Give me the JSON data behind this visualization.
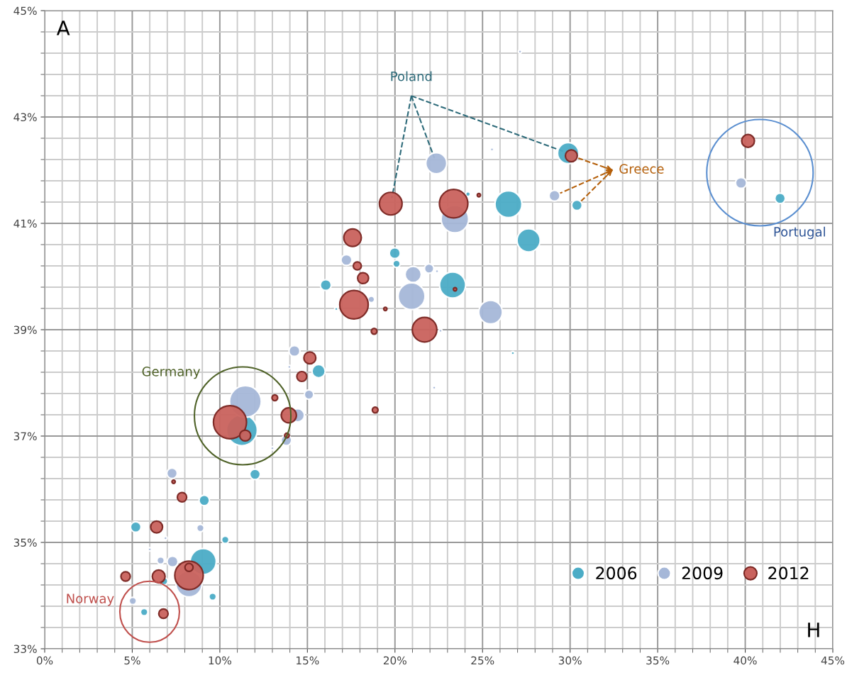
{
  "chart_data": {
    "type": "bubble",
    "legend": "bottom right",
    "grid": true,
    "xlim": [
      0,
      45
    ],
    "ylim": [
      33,
      45
    ],
    "xticks": [
      {
        "value": 0,
        "label": "0%"
      },
      {
        "value": 1,
        "label": null
      },
      {
        "value": 2,
        "label": null
      },
      {
        "value": 3,
        "label": null
      },
      {
        "value": 4,
        "label": null
      },
      {
        "value": 5,
        "label": "5%"
      },
      {
        "value": 6,
        "label": null
      },
      {
        "value": 7,
        "label": null
      },
      {
        "value": 8,
        "label": null
      },
      {
        "value": 9,
        "label": null
      },
      {
        "value": 10,
        "label": "10%"
      },
      {
        "value": 11,
        "label": null
      },
      {
        "value": 12,
        "label": null
      },
      {
        "value": 13,
        "label": null
      },
      {
        "value": 14,
        "label": null
      },
      {
        "value": 15,
        "label": "15%"
      },
      {
        "value": 16,
        "label": null
      },
      {
        "value": 17,
        "label": null
      },
      {
        "value": 18,
        "label": null
      },
      {
        "value": 19,
        "label": null
      },
      {
        "value": 20,
        "label": "20%"
      },
      {
        "value": 21,
        "label": null
      },
      {
        "value": 22,
        "label": null
      },
      {
        "value": 23,
        "label": null
      },
      {
        "value": 24,
        "label": null
      },
      {
        "value": 25,
        "label": "25%"
      },
      {
        "value": 26,
        "label": null
      },
      {
        "value": 27,
        "label": null
      },
      {
        "value": 28,
        "label": null
      },
      {
        "value": 29,
        "label": null
      },
      {
        "value": 30,
        "label": "30%"
      },
      {
        "value": 31,
        "label": null
      },
      {
        "value": 32,
        "label": null
      },
      {
        "value": 33,
        "label": null
      },
      {
        "value": 34,
        "label": null
      },
      {
        "value": 35,
        "label": "35%"
      },
      {
        "value": 36,
        "label": null
      },
      {
        "value": 37,
        "label": null
      },
      {
        "value": 38,
        "label": null
      },
      {
        "value": 39,
        "label": null
      },
      {
        "value": 40,
        "label": "40%"
      },
      {
        "value": 41,
        "label": null
      },
      {
        "value": 42,
        "label": null
      },
      {
        "value": 43,
        "label": null
      },
      {
        "value": 44,
        "label": null
      },
      {
        "value": 45,
        "label": "45%"
      }
    ],
    "yticks": [
      {
        "value": 33,
        "label": "33%"
      },
      {
        "value": 33.4,
        "label": null
      },
      {
        "value": 33.8,
        "label": null
      },
      {
        "value": 34.2,
        "label": null
      },
      {
        "value": 34.6,
        "label": null
      },
      {
        "value": 35,
        "label": "35%"
      },
      {
        "value": 35.4,
        "label": null
      },
      {
        "value": 35.8,
        "label": null
      },
      {
        "value": 36.2,
        "label": null
      },
      {
        "value": 36.6,
        "label": null
      },
      {
        "value": 37,
        "label": "37%"
      },
      {
        "value": 37.4,
        "label": null
      },
      {
        "value": 37.8,
        "label": null
      },
      {
        "value": 38.2,
        "label": null
      },
      {
        "value": 38.6,
        "label": null
      },
      {
        "value": 39,
        "label": "39%"
      },
      {
        "value": 39.4,
        "label": null
      },
      {
        "value": 39.8,
        "label": null
      },
      {
        "value": 40.2,
        "label": null
      },
      {
        "value": 40.6,
        "label": null
      },
      {
        "value": 41,
        "label": "41%"
      },
      {
        "value": 41.4,
        "label": null
      },
      {
        "value": 41.8,
        "label": null
      },
      {
        "value": 42.2,
        "label": null
      },
      {
        "value": 42.6,
        "label": null
      },
      {
        "value": 43,
        "label": "43%"
      },
      {
        "value": 43.4,
        "label": null
      },
      {
        "value": 43.8,
        "label": null
      },
      {
        "value": 44.2,
        "label": null
      },
      {
        "value": 44.6,
        "label": null
      },
      {
        "value": 45,
        "label": "45%"
      }
    ],
    "series": [
      {
        "name": "2006",
        "color": "#4bacc6",
        "x": [
          41.99,
          29.89,
          30.39,
          24.17,
          26.48,
          27.63,
          19.99,
          20.09,
          16.05,
          23.29,
          16.65,
          26.73,
          15.64,
          11.26,
          12.01,
          9.11,
          5.2,
          10.31,
          9.05,
          6.82,
          9.59,
          5.68
        ],
        "values": [
          41.47,
          42.32,
          41.34,
          41.55,
          41.36,
          40.68,
          40.44,
          40.24,
          39.84,
          39.84,
          39.39,
          38.56,
          38.22,
          37.11,
          36.28,
          35.79,
          35.29,
          35.05,
          34.64,
          34.27,
          33.98,
          33.69
        ],
        "sizes": [
          0.1,
          0.41,
          0.1,
          0.02,
          0.66,
          0.49,
          0.11,
          0.05,
          0.11,
          0.62,
          0.01,
          0.01,
          0.16,
          0.87,
          0.1,
          0.1,
          0.1,
          0.05,
          0.62,
          0.05,
          0.05,
          0.05
        ]
      },
      {
        "name": "2009",
        "color": "#a5b7d8",
        "x": [
          39.76,
          29.11,
          22.36,
          23.42,
          25.54,
          27.14,
          17.23,
          21.04,
          21.95,
          22.4,
          20.95,
          18.65,
          25.46,
          22.6,
          14.26,
          13.97,
          15.09,
          11.46,
          14.45,
          13.8,
          13.0,
          22.24,
          7.27,
          8.89,
          6.9,
          6.0,
          6.62,
          7.3,
          8.24,
          5.03
        ],
        "values": [
          41.76,
          41.52,
          42.13,
          41.08,
          42.39,
          44.23,
          40.31,
          40.04,
          40.15,
          40.1,
          39.63,
          39.57,
          39.33,
          38.98,
          38.6,
          38.3,
          37.78,
          37.65,
          37.39,
          36.92,
          36.77,
          37.91,
          36.3,
          35.27,
          35.08,
          34.87,
          34.66,
          34.64,
          34.22,
          33.9
        ],
        "sizes": [
          0.11,
          0.11,
          0.4,
          0.69,
          0.01,
          0.01,
          0.11,
          0.24,
          0.08,
          0.01,
          0.66,
          0.04,
          0.51,
          0.01,
          0.11,
          0.01,
          0.08,
          0.92,
          0.16,
          0.1,
          0.01,
          0.01,
          0.1,
          0.05,
          0.01,
          0.01,
          0.05,
          0.11,
          0.62,
          0.05
        ]
      },
      {
        "name": "2012",
        "color": "#c9625d",
        "x": [
          40.16,
          30.07,
          19.76,
          23.35,
          24.79,
          17.58,
          17.85,
          18.18,
          23.43,
          17.66,
          19.45,
          21.69,
          18.81,
          15.14,
          14.68,
          13.14,
          10.58,
          11.45,
          13.94,
          13.83,
          18.87,
          7.36,
          7.84,
          6.39,
          8.24,
          8.24,
          4.62,
          6.51,
          6.78
        ],
        "values": [
          42.55,
          42.27,
          41.37,
          41.37,
          41.53,
          40.73,
          40.2,
          39.97,
          39.76,
          39.47,
          39.39,
          39.0,
          38.97,
          38.47,
          38.12,
          37.72,
          37.26,
          37.01,
          37.39,
          37.01,
          37.49,
          36.14,
          35.85,
          35.29,
          34.38,
          34.53,
          34.36,
          34.36,
          33.66
        ],
        "sizes": [
          0.15,
          0.13,
          0.47,
          0.74,
          0.01,
          0.28,
          0.06,
          0.11,
          0.01,
          0.74,
          0.01,
          0.55,
          0.03,
          0.13,
          0.09,
          0.03,
          1,
          0.11,
          0.21,
          0.02,
          0.03,
          0.01,
          0.08,
          0.13,
          0.74,
          0.06,
          0.08,
          0.15,
          0.08
        ]
      }
    ],
    "annotations": [
      "A",
      "H",
      {
        "text": "Poland",
        "x": 19.76,
        "y": 41.37
      },
      {
        "text": "Greece",
        "x": 30.07,
        "y": 42.27
      },
      "Portugal",
      "Germany",
      "Norway"
    ]
  }
}
